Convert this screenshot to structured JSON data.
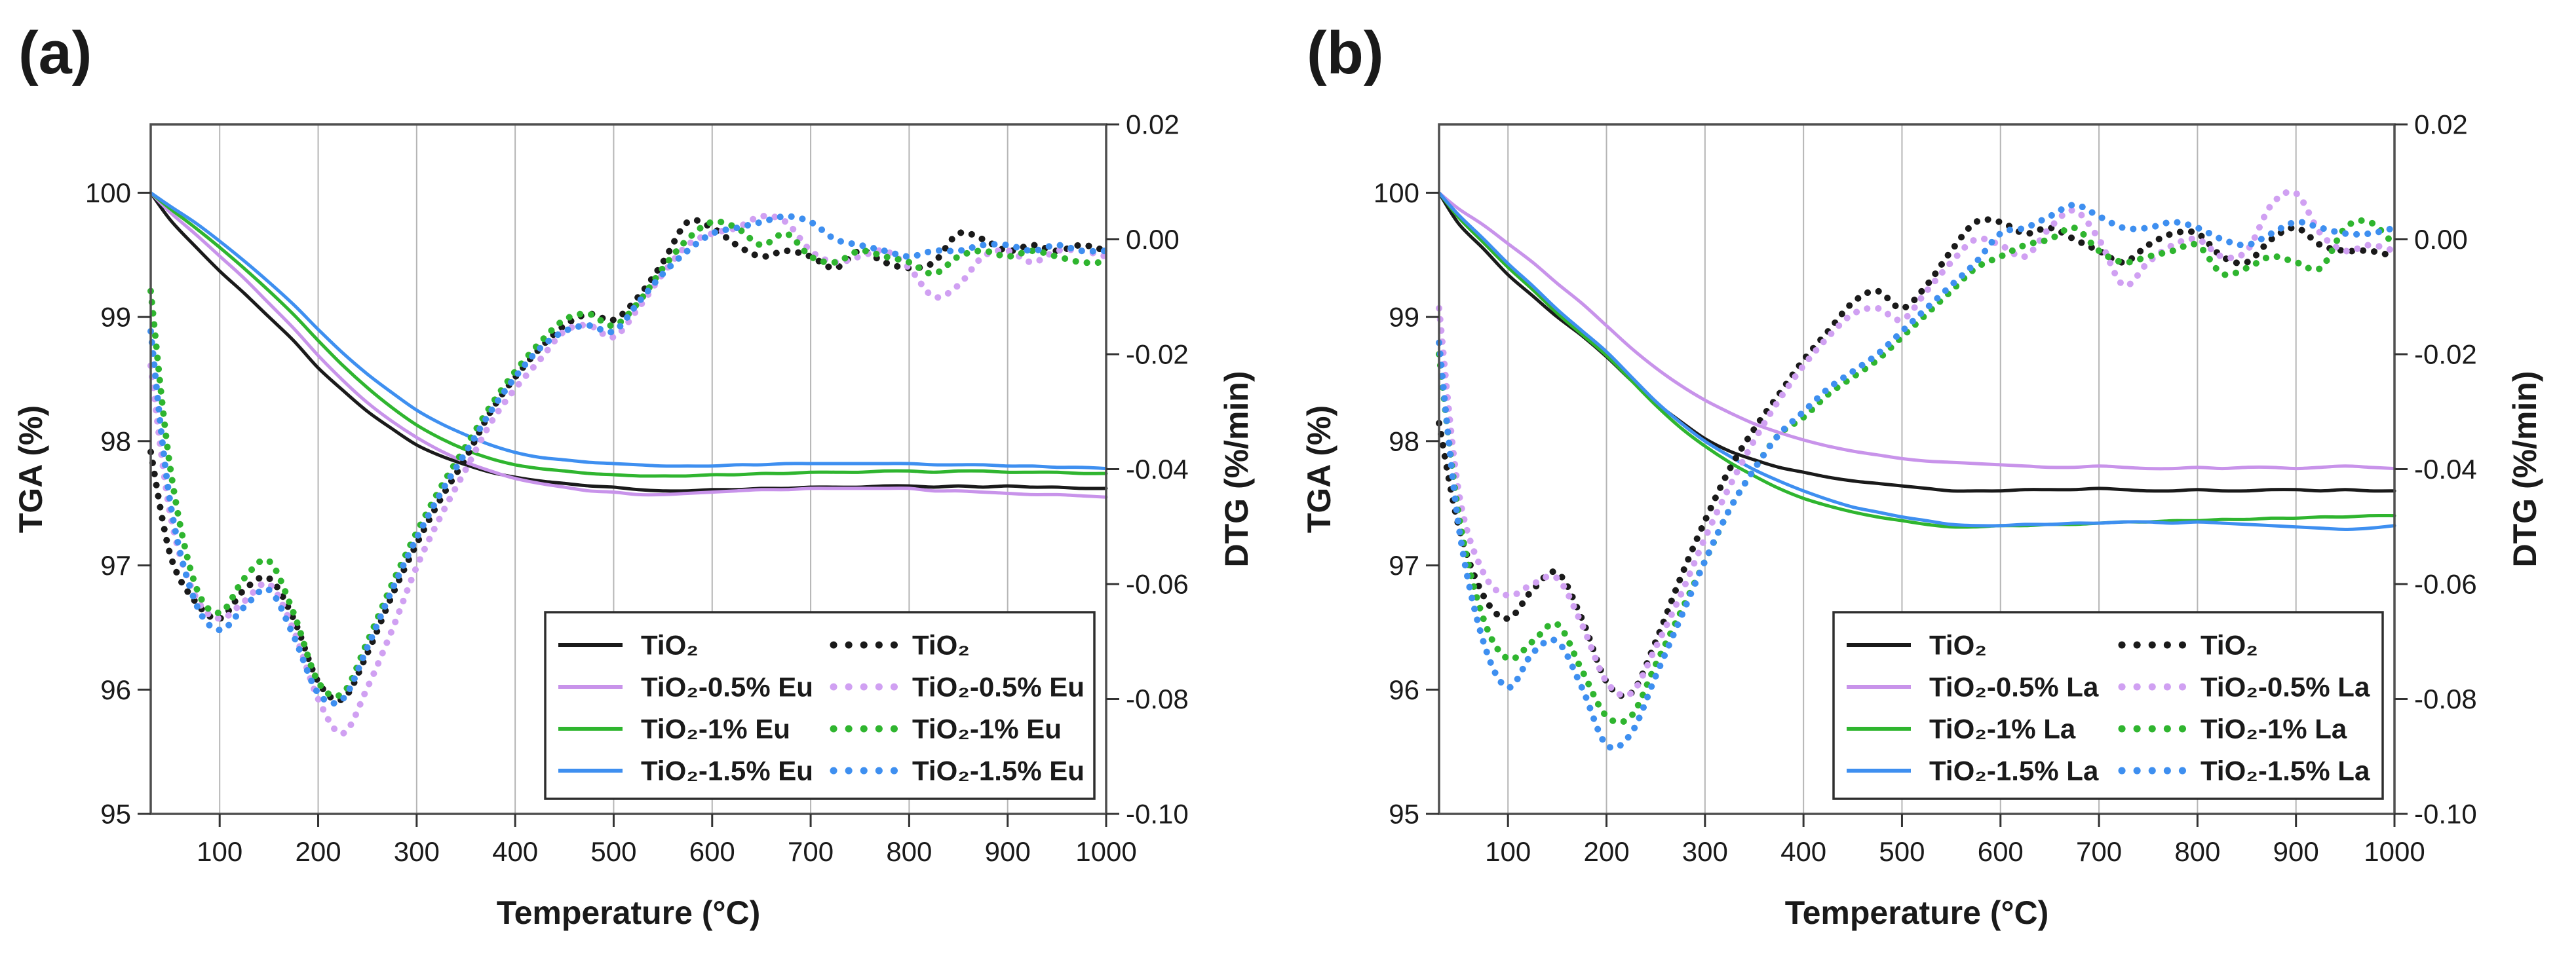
{
  "colors": {
    "black": "#1a1a1a",
    "violet": "#c893ea",
    "green": "#2fb52f",
    "blue": "#3e8ff0",
    "grid": "#b5b5b5",
    "frame": "#4f4f4f",
    "tick": "#333333",
    "legend_border": "#2e2e2e",
    "background": "#ffffff"
  },
  "chart_data": [
    {
      "panel_label": "(a)",
      "type": "line",
      "legend_position": "inside bottom-right",
      "x": [
        30,
        50,
        75,
        100,
        125,
        150,
        175,
        200,
        225,
        250,
        275,
        300,
        325,
        350,
        375,
        400,
        425,
        450,
        475,
        500,
        525,
        550,
        575,
        600,
        625,
        650,
        675,
        700,
        725,
        750,
        775,
        800,
        825,
        850,
        875,
        900,
        925,
        950,
        975,
        1000
      ],
      "axes": {
        "x": {
          "title": "Temperature (°C)",
          "min": 30,
          "max": 1000,
          "grid": true,
          "tick_values": [
            100,
            200,
            300,
            400,
            500,
            600,
            700,
            800,
            900,
            1000
          ],
          "tick_labels": [
            "100",
            "200",
            "300",
            "400",
            "500",
            "600",
            "700",
            "800",
            "900",
            "1000"
          ]
        },
        "y_left": {
          "title": "TGA (%)",
          "min": 95,
          "max": 100.55,
          "tick_values": [
            95,
            96,
            97,
            98,
            99,
            100
          ],
          "tick_labels": [
            "95",
            "96",
            "97",
            "98",
            "99",
            "100"
          ]
        },
        "y_right": {
          "title": "DTG (%/min)",
          "min": -0.1,
          "max": 0.02,
          "tick_values": [
            0.02,
            0.0,
            -0.02,
            -0.04,
            -0.06,
            -0.08,
            -0.1
          ],
          "tick_labels": [
            "0.02",
            "0.00",
            "-0.02",
            "-0.04",
            "-0.06",
            "-0.08",
            "-0.10"
          ]
        }
      },
      "series": [
        {
          "name": "TiO₂",
          "measure": "TGA",
          "axis": "left",
          "style": "solid",
          "color": "#1a1a1a",
          "values": [
            100,
            99.78,
            99.57,
            99.37,
            99.19,
            99.0,
            98.81,
            98.59,
            98.41,
            98.24,
            98.1,
            97.97,
            97.88,
            97.81,
            97.75,
            97.71,
            97.68,
            97.66,
            97.64,
            97.63,
            97.61,
            97.6,
            97.6,
            97.61,
            97.61,
            97.62,
            97.62,
            97.63,
            97.63,
            97.63,
            97.64,
            97.64,
            97.63,
            97.64,
            97.63,
            97.64,
            97.63,
            97.63,
            97.62,
            97.62
          ]
        },
        {
          "name": "TiO₂-0.5% Eu",
          "measure": "TGA",
          "axis": "left",
          "style": "solid",
          "color": "#c893ea",
          "values": [
            100,
            99.84,
            99.67,
            99.49,
            99.31,
            99.11,
            98.91,
            98.69,
            98.49,
            98.31,
            98.16,
            98.03,
            97.92,
            97.83,
            97.76,
            97.7,
            97.66,
            97.63,
            97.6,
            97.59,
            97.57,
            97.57,
            97.58,
            97.59,
            97.6,
            97.61,
            97.61,
            97.62,
            97.62,
            97.62,
            97.62,
            97.62,
            97.6,
            97.6,
            97.59,
            97.58,
            97.57,
            97.57,
            97.56,
            97.55
          ]
        },
        {
          "name": "TiO₂-1% Eu",
          "measure": "TGA",
          "axis": "left",
          "style": "solid",
          "color": "#2fb52f",
          "values": [
            100,
            99.87,
            99.72,
            99.56,
            99.39,
            99.21,
            99.02,
            98.81,
            98.61,
            98.43,
            98.27,
            98.13,
            98.02,
            97.93,
            97.86,
            97.81,
            97.78,
            97.76,
            97.74,
            97.73,
            97.72,
            97.72,
            97.72,
            97.73,
            97.73,
            97.74,
            97.74,
            97.75,
            97.75,
            97.75,
            97.76,
            97.76,
            97.75,
            97.76,
            97.76,
            97.75,
            97.75,
            97.75,
            97.74,
            97.74
          ]
        },
        {
          "name": "TiO₂-1.5% Eu",
          "measure": "TGA",
          "axis": "left",
          "style": "solid",
          "color": "#3e8ff0",
          "values": [
            100,
            99.89,
            99.76,
            99.61,
            99.45,
            99.28,
            99.1,
            98.9,
            98.71,
            98.54,
            98.39,
            98.25,
            98.14,
            98.05,
            97.97,
            97.91,
            97.87,
            97.85,
            97.83,
            97.82,
            97.81,
            97.8,
            97.8,
            97.8,
            97.81,
            97.81,
            97.82,
            97.82,
            97.82,
            97.82,
            97.82,
            97.82,
            97.81,
            97.81,
            97.81,
            97.8,
            97.8,
            97.79,
            97.79,
            97.78
          ]
        },
        {
          "name": "TiO₂",
          "measure": "DTG",
          "axis": "right",
          "style": "dotted",
          "color": "#1a1a1a",
          "values": [
            -0.037,
            -0.055,
            -0.063,
            -0.066,
            -0.061,
            -0.059,
            -0.066,
            -0.077,
            -0.08,
            -0.072,
            -0.062,
            -0.053,
            -0.045,
            -0.038,
            -0.03,
            -0.024,
            -0.019,
            -0.015,
            -0.013,
            -0.014,
            -0.01,
            -0.004,
            0.003,
            0.002,
            -0.001,
            -0.003,
            -0.002,
            -0.003,
            -0.005,
            -0.002,
            -0.004,
            -0.005,
            -0.004,
            0.001,
            0,
            -0.002,
            -0.001,
            -0.002,
            -0.001,
            -0.002
          ]
        },
        {
          "name": "TiO₂-0.5% Eu",
          "measure": "DTG",
          "axis": "right",
          "style": "dotted",
          "color": "#d0a0f2",
          "values": [
            -0.022,
            -0.048,
            -0.062,
            -0.066,
            -0.063,
            -0.06,
            -0.068,
            -0.08,
            -0.086,
            -0.078,
            -0.068,
            -0.057,
            -0.048,
            -0.04,
            -0.032,
            -0.026,
            -0.021,
            -0.016,
            -0.015,
            -0.017,
            -0.012,
            -0.006,
            -0.001,
            0.001,
            0.002,
            0.004,
            0.003,
            -0.002,
            -0.004,
            -0.003,
            -0.002,
            -0.005,
            -0.01,
            -0.008,
            -0.003,
            -0.002,
            -0.004,
            -0.002,
            -0.002,
            -0.003
          ]
        },
        {
          "name": "TiO₂-1% Eu",
          "measure": "DTG",
          "axis": "right",
          "style": "dotted",
          "color": "#2fb52f",
          "values": [
            -0.009,
            -0.04,
            -0.06,
            -0.065,
            -0.059,
            -0.056,
            -0.065,
            -0.077,
            -0.079,
            -0.07,
            -0.06,
            -0.051,
            -0.043,
            -0.036,
            -0.029,
            -0.023,
            -0.018,
            -0.014,
            -0.013,
            -0.015,
            -0.011,
            -0.005,
            0,
            0.003,
            0.002,
            -0.001,
            0.001,
            -0.003,
            -0.004,
            -0.002,
            -0.003,
            -0.004,
            -0.006,
            -0.003,
            -0.002,
            -0.003,
            -0.002,
            -0.003,
            -0.004,
            -0.004
          ]
        },
        {
          "name": "TiO₂-1.5% Eu",
          "measure": "DTG",
          "axis": "right",
          "style": "dotted",
          "color": "#3e8ff0",
          "values": [
            -0.016,
            -0.046,
            -0.063,
            -0.068,
            -0.064,
            -0.061,
            -0.069,
            -0.079,
            -0.08,
            -0.071,
            -0.061,
            -0.052,
            -0.044,
            -0.037,
            -0.03,
            -0.024,
            -0.019,
            -0.016,
            -0.015,
            -0.016,
            -0.011,
            -0.006,
            -0.002,
            0.001,
            0.002,
            0.003,
            0.004,
            0.003,
            0,
            -0.001,
            -0.002,
            -0.003,
            -0.002,
            -0.002,
            -0.001,
            -0.001,
            -0.002,
            -0.001,
            -0.002,
            -0.002
          ]
        }
      ]
    },
    {
      "panel_label": "(b)",
      "type": "line",
      "legend_position": "inside bottom-right",
      "x": [
        30,
        50,
        75,
        100,
        125,
        150,
        175,
        200,
        225,
        250,
        275,
        300,
        325,
        350,
        375,
        400,
        425,
        450,
        475,
        500,
        525,
        550,
        575,
        600,
        625,
        650,
        675,
        700,
        725,
        750,
        775,
        800,
        825,
        850,
        875,
        900,
        925,
        950,
        975,
        1000
      ],
      "axes": {
        "x": {
          "title": "Temperature (°C)",
          "min": 30,
          "max": 1000,
          "grid": true,
          "tick_values": [
            100,
            200,
            300,
            400,
            500,
            600,
            700,
            800,
            900,
            1000
          ],
          "tick_labels": [
            "100",
            "200",
            "300",
            "400",
            "500",
            "600",
            "700",
            "800",
            "900",
            "1000"
          ]
        },
        "y_left": {
          "title": "TGA (%)",
          "min": 95,
          "max": 100.55,
          "tick_values": [
            95,
            96,
            97,
            98,
            99,
            100
          ],
          "tick_labels": [
            "95",
            "96",
            "97",
            "98",
            "99",
            "100"
          ]
        },
        "y_right": {
          "title": "DTG (%/min)",
          "min": -0.1,
          "max": 0.02,
          "tick_values": [
            0.02,
            0.0,
            -0.02,
            -0.04,
            -0.06,
            -0.08,
            -0.1
          ],
          "tick_labels": [
            "0.02",
            "0.00",
            "-0.02",
            "-0.04",
            "-0.06",
            "-0.08",
            "-0.10"
          ]
        }
      },
      "series": [
        {
          "name": "TiO₂",
          "measure": "TGA",
          "axis": "left",
          "style": "solid",
          "color": "#1a1a1a",
          "values": [
            100,
            99.75,
            99.55,
            99.34,
            99.17,
            99.0,
            98.85,
            98.68,
            98.49,
            98.31,
            98.16,
            98.02,
            97.92,
            97.85,
            97.79,
            97.75,
            97.71,
            97.68,
            97.66,
            97.64,
            97.62,
            97.6,
            97.6,
            97.6,
            97.61,
            97.61,
            97.61,
            97.62,
            97.61,
            97.6,
            97.6,
            97.61,
            97.6,
            97.6,
            97.61,
            97.61,
            97.6,
            97.61,
            97.6,
            97.6
          ]
        },
        {
          "name": "TiO₂-0.5% La",
          "measure": "TGA",
          "axis": "left",
          "style": "solid",
          "color": "#c893ea",
          "values": [
            100,
            99.87,
            99.74,
            99.59,
            99.44,
            99.27,
            99.11,
            98.93,
            98.75,
            98.59,
            98.45,
            98.33,
            98.23,
            98.14,
            98.07,
            98.01,
            97.96,
            97.92,
            97.89,
            97.86,
            97.84,
            97.83,
            97.82,
            97.81,
            97.8,
            97.79,
            97.79,
            97.8,
            97.79,
            97.78,
            97.78,
            97.79,
            97.78,
            97.79,
            97.79,
            97.78,
            97.79,
            97.8,
            97.79,
            97.78
          ]
        },
        {
          "name": "TiO₂-1% La",
          "measure": "TGA",
          "axis": "left",
          "style": "solid",
          "color": "#2fb52f",
          "values": [
            100,
            99.8,
            99.6,
            99.4,
            99.22,
            99.03,
            98.86,
            98.69,
            98.49,
            98.29,
            98.11,
            97.96,
            97.83,
            97.72,
            97.62,
            97.54,
            97.48,
            97.43,
            97.39,
            97.36,
            97.33,
            97.31,
            97.31,
            97.32,
            97.32,
            97.33,
            97.33,
            97.34,
            97.35,
            97.35,
            97.36,
            97.36,
            97.37,
            97.37,
            97.38,
            97.38,
            97.39,
            97.39,
            97.4,
            97.4
          ]
        },
        {
          "name": "TiO₂-1.5% La",
          "measure": "TGA",
          "axis": "left",
          "style": "solid",
          "color": "#3e8ff0",
          "values": [
            100,
            99.82,
            99.63,
            99.43,
            99.25,
            99.06,
            98.89,
            98.72,
            98.52,
            98.32,
            98.15,
            98.0,
            97.88,
            97.77,
            97.68,
            97.6,
            97.53,
            97.47,
            97.43,
            97.39,
            97.36,
            97.33,
            97.32,
            97.32,
            97.33,
            97.33,
            97.34,
            97.34,
            97.35,
            97.35,
            97.34,
            97.35,
            97.34,
            97.33,
            97.32,
            97.31,
            97.3,
            97.29,
            97.3,
            97.32
          ]
        },
        {
          "name": "TiO₂",
          "measure": "DTG",
          "axis": "right",
          "style": "dotted",
          "color": "#1a1a1a",
          "values": [
            -0.032,
            -0.05,
            -0.062,
            -0.066,
            -0.061,
            -0.058,
            -0.066,
            -0.077,
            -0.079,
            -0.07,
            -0.059,
            -0.049,
            -0.04,
            -0.033,
            -0.027,
            -0.021,
            -0.016,
            -0.011,
            -0.009,
            -0.012,
            -0.008,
            -0.002,
            0.003,
            0.003,
            0.001,
            0.002,
            0,
            -0.002,
            -0.004,
            -0.001,
            0.001,
            0.001,
            -0.003,
            -0.004,
            0,
            0.002,
            -0.001,
            -0.002,
            -0.002,
            -0.003
          ]
        },
        {
          "name": "TiO₂-0.5% La",
          "measure": "DTG",
          "axis": "right",
          "style": "dotted",
          "color": "#d0a0f2",
          "values": [
            -0.012,
            -0.044,
            -0.058,
            -0.062,
            -0.06,
            -0.059,
            -0.067,
            -0.077,
            -0.079,
            -0.071,
            -0.062,
            -0.052,
            -0.043,
            -0.035,
            -0.028,
            -0.022,
            -0.017,
            -0.013,
            -0.012,
            -0.014,
            -0.009,
            -0.004,
            0,
            -0.001,
            -0.003,
            0.002,
            0.005,
            0,
            -0.008,
            -0.004,
            -0.001,
            0,
            -0.003,
            -0.002,
            0.006,
            0.008,
            0.001,
            -0.002,
            -0.001,
            -0.002
          ]
        },
        {
          "name": "TiO₂-1% La",
          "measure": "DTG",
          "axis": "right",
          "style": "dotted",
          "color": "#2fb52f",
          "values": [
            -0.02,
            -0.048,
            -0.066,
            -0.073,
            -0.07,
            -0.067,
            -0.075,
            -0.083,
            -0.083,
            -0.074,
            -0.065,
            -0.056,
            -0.047,
            -0.04,
            -0.034,
            -0.031,
            -0.027,
            -0.024,
            -0.021,
            -0.017,
            -0.013,
            -0.009,
            -0.005,
            -0.003,
            -0.001,
            0,
            0.002,
            -0.002,
            -0.004,
            -0.003,
            -0.002,
            -0.001,
            -0.006,
            -0.005,
            -0.003,
            -0.004,
            -0.005,
            0.002,
            0.003,
            -0.001
          ]
        },
        {
          "name": "TiO₂-1.5% La",
          "measure": "DTG",
          "axis": "right",
          "style": "dotted",
          "color": "#3e8ff0",
          "values": [
            -0.018,
            -0.05,
            -0.07,
            -0.078,
            -0.072,
            -0.07,
            -0.078,
            -0.088,
            -0.086,
            -0.076,
            -0.066,
            -0.056,
            -0.047,
            -0.04,
            -0.034,
            -0.03,
            -0.026,
            -0.023,
            -0.02,
            -0.016,
            -0.012,
            -0.008,
            -0.004,
            0.001,
            0.002,
            0.004,
            0.006,
            0.004,
            0.002,
            0.002,
            0.003,
            0.002,
            0,
            -0.001,
            0.001,
            0.003,
            0.002,
            0.001,
            0.001,
            0.002
          ]
        }
      ]
    }
  ]
}
